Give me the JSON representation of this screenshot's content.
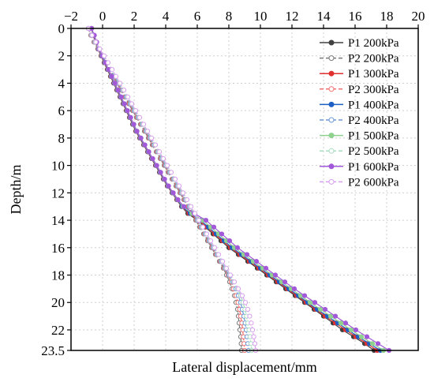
{
  "chart_data": {
    "type": "line",
    "xlabel": "Lateral displacement/mm",
    "ylabel": "Depth/m",
    "xlim": [
      -2,
      20
    ],
    "ylim": [
      0,
      23.5
    ],
    "y_inverted": true,
    "x_axis_position": "top",
    "x_ticks": [
      -2,
      0,
      2,
      4,
      6,
      8,
      10,
      12,
      14,
      16,
      18,
      20
    ],
    "y_ticks": [
      0,
      2,
      4,
      6,
      8,
      10,
      12,
      14,
      16,
      18,
      20,
      22,
      23.5
    ],
    "grid": true,
    "legend_position": "top-right",
    "depth": [
      0,
      0.5,
      1,
      1.5,
      2,
      2.5,
      3,
      3.5,
      4,
      4.5,
      5,
      5.5,
      6,
      6.5,
      7,
      7.5,
      8,
      8.5,
      9,
      9.5,
      10,
      10.5,
      11,
      11.5,
      12,
      12.5,
      13,
      13.5,
      14,
      14.5,
      15,
      15.5,
      16,
      16.5,
      17,
      17.5,
      18,
      18.5,
      19,
      19.5,
      20,
      20.5,
      21,
      21.5,
      22,
      22.5,
      23,
      23.5
    ],
    "series": [
      {
        "name": "P1 200kPa",
        "color": "#404040",
        "style": "solid",
        "marker": "filled",
        "values": [
          -0.7,
          -0.6,
          -0.45,
          -0.3,
          -0.1,
          0.1,
          0.3,
          0.5,
          0.7,
          0.9,
          1.1,
          1.3,
          1.5,
          1.7,
          1.9,
          2.1,
          2.35,
          2.6,
          2.85,
          3.1,
          3.35,
          3.6,
          3.85,
          4.1,
          4.4,
          4.7,
          5.0,
          5.4,
          6.0,
          6.5,
          7.0,
          7.5,
          8.0,
          8.6,
          9.2,
          9.8,
          10.4,
          11.0,
          11.6,
          12.2,
          12.8,
          13.4,
          14.0,
          14.6,
          15.2,
          15.9,
          16.6,
          17.2
        ]
      },
      {
        "name": "P2 200kPa",
        "color": "#7a7a7a",
        "style": "dashed",
        "marker": "open",
        "values": [
          -0.9,
          -0.75,
          -0.55,
          -0.3,
          -0.1,
          0.15,
          0.4,
          0.65,
          0.9,
          1.15,
          1.4,
          1.65,
          1.9,
          2.15,
          2.4,
          2.65,
          2.9,
          3.15,
          3.4,
          3.65,
          3.9,
          4.15,
          4.4,
          4.65,
          4.9,
          5.15,
          5.4,
          5.65,
          5.9,
          6.15,
          6.4,
          6.65,
          6.9,
          7.15,
          7.4,
          7.65,
          7.85,
          8.05,
          8.2,
          8.35,
          8.45,
          8.55,
          8.6,
          8.65,
          8.7,
          8.75,
          8.78,
          8.8
        ]
      },
      {
        "name": "P1 300kPa",
        "color": "#e03030",
        "style": "solid",
        "marker": "filled",
        "values": [
          -0.7,
          -0.58,
          -0.43,
          -0.28,
          -0.08,
          0.12,
          0.32,
          0.52,
          0.72,
          0.92,
          1.12,
          1.32,
          1.52,
          1.72,
          1.92,
          2.12,
          2.37,
          2.62,
          2.87,
          3.12,
          3.37,
          3.62,
          3.87,
          4.12,
          4.42,
          4.72,
          5.02,
          5.47,
          6.1,
          6.6,
          7.1,
          7.6,
          8.1,
          8.7,
          9.3,
          9.9,
          10.5,
          11.1,
          11.7,
          12.3,
          12.9,
          13.5,
          14.1,
          14.75,
          15.4,
          16.05,
          16.75,
          17.4
        ]
      },
      {
        "name": "P2 300kPa",
        "color": "#f07070",
        "style": "dashed",
        "marker": "open",
        "values": [
          -0.9,
          -0.73,
          -0.52,
          -0.27,
          -0.05,
          0.2,
          0.45,
          0.7,
          0.95,
          1.2,
          1.45,
          1.7,
          1.95,
          2.2,
          2.45,
          2.7,
          2.95,
          3.2,
          3.45,
          3.7,
          3.95,
          4.2,
          4.45,
          4.7,
          4.95,
          5.2,
          5.45,
          5.7,
          5.95,
          6.2,
          6.45,
          6.7,
          6.95,
          7.2,
          7.45,
          7.7,
          7.95,
          8.15,
          8.3,
          8.45,
          8.58,
          8.68,
          8.75,
          8.82,
          8.88,
          8.92,
          8.96,
          9.0
        ]
      },
      {
        "name": "P1 400kPa",
        "color": "#1f5fc4",
        "style": "solid",
        "marker": "filled",
        "values": [
          -0.7,
          -0.56,
          -0.41,
          -0.26,
          -0.06,
          0.14,
          0.34,
          0.54,
          0.74,
          0.94,
          1.14,
          1.34,
          1.54,
          1.74,
          1.94,
          2.14,
          2.39,
          2.64,
          2.89,
          3.14,
          3.39,
          3.64,
          3.89,
          4.14,
          4.44,
          4.74,
          5.04,
          5.55,
          6.2,
          6.7,
          7.2,
          7.7,
          8.2,
          8.8,
          9.4,
          10.0,
          10.6,
          11.2,
          11.8,
          12.4,
          13.0,
          13.6,
          14.25,
          14.9,
          15.55,
          16.2,
          16.9,
          17.6
        ]
      },
      {
        "name": "P2 400kPa",
        "color": "#6a98d8",
        "style": "dashed",
        "marker": "open",
        "values": [
          -0.9,
          -0.71,
          -0.49,
          -0.24,
          0.0,
          0.25,
          0.5,
          0.75,
          1.0,
          1.25,
          1.5,
          1.75,
          2.0,
          2.25,
          2.5,
          2.75,
          3.0,
          3.25,
          3.5,
          3.75,
          4.0,
          4.25,
          4.5,
          4.75,
          5.0,
          5.25,
          5.5,
          5.75,
          6.0,
          6.25,
          6.5,
          6.75,
          7.0,
          7.25,
          7.5,
          7.75,
          8.0,
          8.25,
          8.45,
          8.6,
          8.75,
          8.85,
          8.95,
          9.03,
          9.1,
          9.15,
          9.2,
          9.25
        ]
      },
      {
        "name": "P1 500kPa",
        "color": "#8fd18f",
        "style": "solid",
        "marker": "filled",
        "values": [
          -0.7,
          -0.54,
          -0.39,
          -0.24,
          -0.04,
          0.16,
          0.36,
          0.56,
          0.76,
          0.96,
          1.16,
          1.36,
          1.56,
          1.76,
          1.96,
          2.16,
          2.41,
          2.66,
          2.91,
          3.16,
          3.41,
          3.66,
          3.91,
          4.16,
          4.46,
          4.76,
          5.1,
          5.65,
          6.35,
          6.85,
          7.35,
          7.85,
          8.35,
          8.95,
          9.55,
          10.15,
          10.75,
          11.35,
          11.95,
          12.55,
          13.15,
          13.8,
          14.45,
          15.1,
          15.75,
          16.4,
          17.1,
          17.8
        ]
      },
      {
        "name": "P2 500kPa",
        "color": "#a8dcc0",
        "style": "dashed",
        "marker": "open",
        "values": [
          -0.9,
          -0.69,
          -0.46,
          -0.21,
          0.05,
          0.3,
          0.55,
          0.8,
          1.05,
          1.3,
          1.55,
          1.8,
          2.05,
          2.3,
          2.55,
          2.8,
          3.05,
          3.3,
          3.55,
          3.8,
          4.05,
          4.3,
          4.55,
          4.8,
          5.05,
          5.3,
          5.55,
          5.8,
          6.05,
          6.3,
          6.55,
          6.8,
          7.05,
          7.3,
          7.55,
          7.8,
          8.05,
          8.3,
          8.55,
          8.75,
          8.9,
          9.02,
          9.12,
          9.2,
          9.28,
          9.34,
          9.4,
          9.45
        ]
      },
      {
        "name": "P1 600kPa",
        "color": "#a259d9",
        "style": "solid",
        "marker": "filled",
        "values": [
          -0.7,
          -0.52,
          -0.37,
          -0.22,
          -0.02,
          0.18,
          0.38,
          0.58,
          0.78,
          0.98,
          1.18,
          1.38,
          1.58,
          1.78,
          1.98,
          2.18,
          2.43,
          2.68,
          2.93,
          3.18,
          3.43,
          3.68,
          3.93,
          4.18,
          4.48,
          4.78,
          5.15,
          5.8,
          6.55,
          7.05,
          7.55,
          8.05,
          8.55,
          9.15,
          9.75,
          10.35,
          10.95,
          11.55,
          12.15,
          12.8,
          13.45,
          14.1,
          14.75,
          15.4,
          16.05,
          16.75,
          17.45,
          18.15
        ]
      },
      {
        "name": "P2 600kPa",
        "color": "#d8a0f0",
        "style": "dashed",
        "marker": "open",
        "values": [
          -0.9,
          -0.67,
          -0.43,
          -0.18,
          0.1,
          0.35,
          0.6,
          0.85,
          1.1,
          1.35,
          1.6,
          1.85,
          2.1,
          2.35,
          2.6,
          2.85,
          3.1,
          3.35,
          3.6,
          3.85,
          4.1,
          4.35,
          4.6,
          4.85,
          5.1,
          5.35,
          5.6,
          5.85,
          6.1,
          6.35,
          6.6,
          6.85,
          7.1,
          7.35,
          7.6,
          7.85,
          8.1,
          8.35,
          8.6,
          8.85,
          9.05,
          9.2,
          9.32,
          9.42,
          9.5,
          9.58,
          9.65,
          9.7
        ]
      }
    ]
  }
}
